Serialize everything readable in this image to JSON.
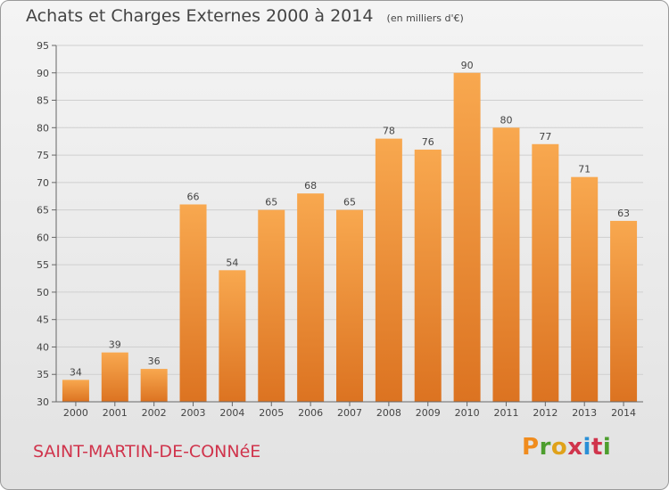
{
  "header": {
    "title": "Achats et Charges Externes 2000 à 2014",
    "units": "(en milliers d'€)"
  },
  "footer": {
    "commune": "SAINT-MARTIN-DE-CONNéE",
    "logo": "Proxiti"
  },
  "colors": {
    "bar_top": "#f8a84f",
    "bar_bottom": "#dc7321",
    "grid": "#cfcfcf",
    "commune_text": "#d0344c",
    "logo_letters": [
      "#f08c1e",
      "#4d9e2e",
      "#e0a21a",
      "#d0344c",
      "#2a8fd6",
      "#d0344c",
      "#4d9e2e"
    ]
  },
  "chart_data": {
    "type": "bar",
    "title": "Achats et Charges Externes 2000 à 2014",
    "subtitle": "(en milliers d'€)",
    "categories": [
      "2000",
      "2001",
      "2002",
      "2003",
      "2004",
      "2005",
      "2006",
      "2007",
      "2008",
      "2009",
      "2010",
      "2011",
      "2012",
      "2013",
      "2014"
    ],
    "values": [
      34,
      39,
      36,
      66,
      54,
      65,
      68,
      65,
      78,
      76,
      90,
      80,
      77,
      71,
      63
    ],
    "ylim": [
      30,
      95
    ],
    "yticks": [
      30,
      35,
      40,
      45,
      50,
      55,
      60,
      65,
      70,
      75,
      80,
      85,
      90,
      95
    ],
    "grid": true,
    "legend": "none"
  }
}
